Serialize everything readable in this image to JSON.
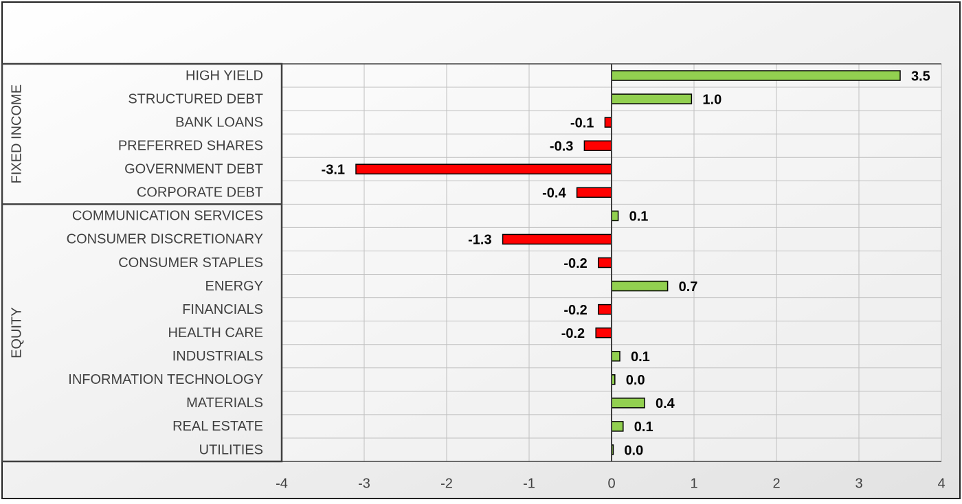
{
  "chart_data": {
    "type": "bar",
    "groups": [
      {
        "label": "FIXED INCOME",
        "categories": [
          "HIGH YIELD",
          "STRUCTURED DEBT",
          "BANK LOANS",
          "PREFERRED SHARES",
          "GOVERNMENT DEBT",
          "CORPORATE DEBT"
        ],
        "values": [
          3.5,
          0.97,
          -0.08,
          -0.33,
          -3.1,
          -0.42
        ],
        "value_labels": [
          "3.5",
          "1.0",
          "-0.1",
          "-0.3",
          "-3.1",
          "-0.4"
        ]
      },
      {
        "label": "EQUITY",
        "categories": [
          "COMMUNICATION SERVICES",
          "CONSUMER DISCRETIONARY",
          "CONSUMER STAPLES",
          "ENERGY",
          "FINANCIALS",
          "HEALTH CARE",
          "INDUSTRIALS",
          "INFORMATION TECHNOLOGY",
          "MATERIALS",
          "REAL ESTATE",
          "UTILITIES"
        ],
        "values": [
          0.08,
          -1.32,
          -0.16,
          0.68,
          -0.16,
          -0.19,
          0.1,
          0.04,
          0.4,
          0.14,
          0.02
        ],
        "value_labels": [
          "0.1",
          "-1.3",
          "-0.2",
          "0.7",
          "-0.2",
          "-0.2",
          "0.1",
          "0.0",
          "0.4",
          "0.1",
          "0.0"
        ]
      }
    ],
    "positive_color": "#92d050",
    "negative_color": "#ff0000",
    "xlim": [
      -4,
      4
    ],
    "xticks": [
      -4,
      -3,
      -2,
      -1,
      0,
      1,
      2,
      3,
      4
    ],
    "grid": true
  }
}
